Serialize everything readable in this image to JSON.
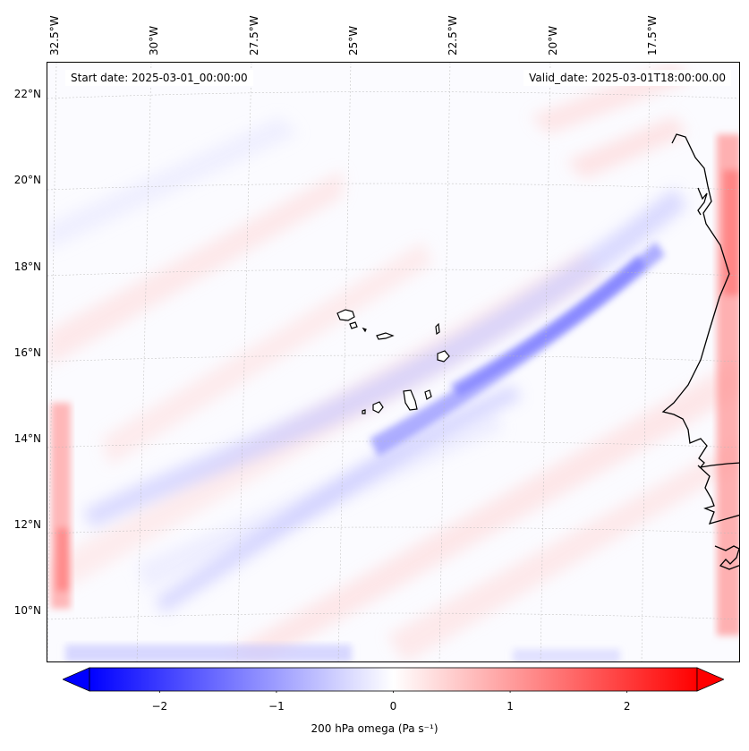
{
  "title": {
    "start_date": "Start date: 2025-03-01_00:00:00",
    "valid_date": "Valid_date: 2025-03-01T18:00:00.00"
  },
  "longitude_labels": [
    "32.5°W",
    "30°W",
    "27.5°W",
    "25°W",
    "22.5°W",
    "20°W",
    "17.5°W"
  ],
  "latitude_labels": [
    "22°N",
    "20°N",
    "18°N",
    "16°N",
    "14°N",
    "12°N",
    "10°N"
  ],
  "map": {
    "variable": "200 hPa omega",
    "lon_range": [
      -33.0,
      -15.5
    ],
    "lat_range": [
      8.8,
      22.8
    ],
    "features": [
      {
        "name": "Cabo Verde islands",
        "type": "island-group"
      },
      {
        "name": "West African coastline",
        "type": "coastline"
      },
      {
        "name": "ascent band",
        "type": "negative-omega-band",
        "from": [
          -31.0,
          12.0
        ],
        "to": [
          -18.0,
          18.8
        ]
      }
    ]
  },
  "colorbar": {
    "min": -2.6,
    "max": 2.6,
    "ticks": [
      "−2",
      "−1",
      "0",
      "1",
      "2"
    ],
    "tick_values": [
      -2,
      -1,
      0,
      1,
      2
    ],
    "colormap": "bwr",
    "low_color": "#0000ff",
    "mid_color": "#ffffff",
    "high_color": "#ff0000",
    "label": "200 hPa omega (Pa s⁻¹)"
  }
}
